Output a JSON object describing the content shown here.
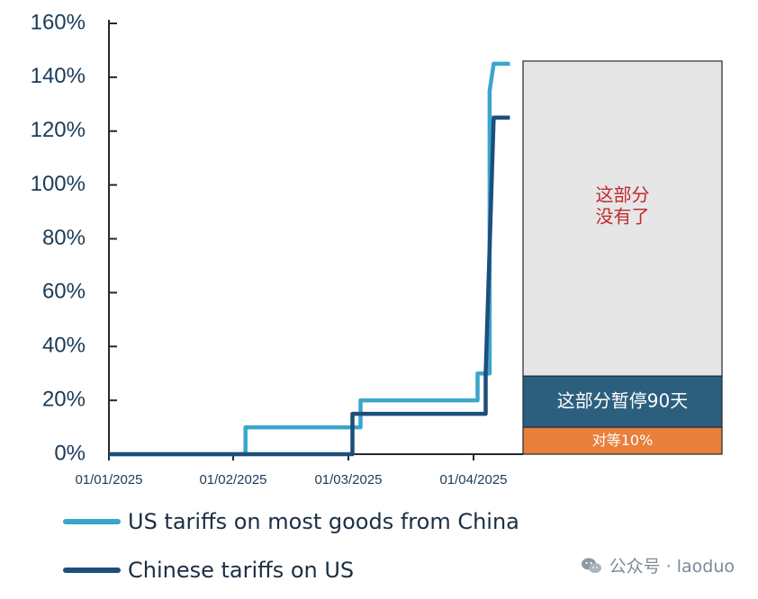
{
  "chart_data": {
    "type": "line",
    "x_ticks": [
      "01/01/2025",
      "01/02/2025",
      "01/03/2025",
      "01/04/2025"
    ],
    "y_ticks": [
      "0%",
      "20%",
      "40%",
      "60%",
      "80%",
      "100%",
      "120%",
      "140%",
      "160%"
    ],
    "ylim": [
      0,
      160
    ],
    "series": [
      {
        "name": "US tariffs on most goods from China",
        "color": "#3aa6cc",
        "points": [
          [
            "2025-01-01",
            0
          ],
          [
            "2025-02-04",
            0
          ],
          [
            "2025-02-04",
            10
          ],
          [
            "2025-03-04",
            10
          ],
          [
            "2025-03-04",
            20
          ],
          [
            "2025-04-02",
            20
          ],
          [
            "2025-04-02",
            30
          ],
          [
            "2025-04-05",
            30
          ],
          [
            "2025-04-05",
            135
          ],
          [
            "2025-04-06",
            145
          ],
          [
            "2025-04-10",
            145
          ]
        ]
      },
      {
        "name": "Chinese tariffs on US",
        "color": "#1d4e7c",
        "points": [
          [
            "2025-01-01",
            0
          ],
          [
            "2025-03-02",
            0
          ],
          [
            "2025-03-02",
            15
          ],
          [
            "2025-04-04",
            15
          ],
          [
            "2025-04-04",
            30
          ],
          [
            "2025-04-06",
            125
          ],
          [
            "2025-04-10",
            125
          ]
        ]
      }
    ],
    "annotations": [
      {
        "text": "这部分\n没有了",
        "y_from": 29,
        "y_to": 146,
        "fill": "#e6e6e6",
        "text_color": "#c0292f"
      },
      {
        "text": "这部分暂停90天",
        "y_from": 10,
        "y_to": 29,
        "fill": "#2c5f7e",
        "text_color": "#ffffff"
      },
      {
        "text": "对等10%",
        "y_from": 0,
        "y_to": 10,
        "fill": "#e87f3c",
        "text_color": "#ffffff"
      }
    ],
    "grid": false
  },
  "legend": [
    {
      "label": "US tariffs on most goods from China",
      "color": "#3aa6cc"
    },
    {
      "label": "Chinese tariffs on US",
      "color": "#1d4e7c"
    }
  ],
  "watermark": {
    "text": "公众号 · laoduo"
  }
}
